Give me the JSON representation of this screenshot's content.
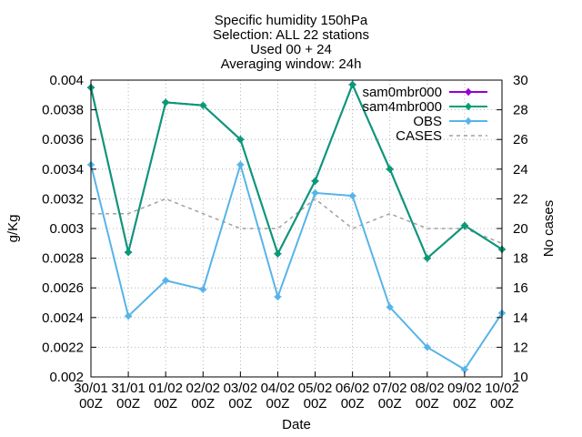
{
  "chart_data": {
    "type": "line",
    "title": [
      "Specific humidity 150hPa",
      "Selection: ALL      22 stations",
      "Used 00 + 24",
      "Averaging window: 24h"
    ],
    "xlabel": "Date",
    "ylabel": "g/Kg",
    "y2label": "No cases",
    "categories": [
      [
        "30/01",
        "00Z"
      ],
      [
        "31/01",
        "00Z"
      ],
      [
        "01/02",
        "00Z"
      ],
      [
        "02/02",
        "00Z"
      ],
      [
        "03/02",
        "00Z"
      ],
      [
        "04/02",
        "00Z"
      ],
      [
        "05/02",
        "00Z"
      ],
      [
        "06/02",
        "00Z"
      ],
      [
        "07/02",
        "00Z"
      ],
      [
        "08/02",
        "00Z"
      ],
      [
        "09/02",
        "00Z"
      ],
      [
        "10/02",
        "00Z"
      ]
    ],
    "ylim": [
      0.002,
      0.004
    ],
    "yticks": [
      "0.002",
      "0.0022",
      "0.0024",
      "0.0026",
      "0.0028",
      "0.003",
      "0.0032",
      "0.0034",
      "0.0036",
      "0.0038",
      "0.004"
    ],
    "y2lim": [
      10,
      30
    ],
    "y2ticks": [
      "10",
      "12",
      "14",
      "16",
      "18",
      "20",
      "22",
      "24",
      "26",
      "28",
      "30"
    ],
    "grid": true,
    "legend_position": "top-right",
    "series": [
      {
        "name": "sam0mbr000",
        "color": "#9400d3",
        "marker": "plus",
        "axis": "y1",
        "values": [
          0.00395,
          0.00284,
          0.00385,
          0.00383,
          0.0036,
          0.00283,
          0.00332,
          0.00397,
          0.0034,
          0.0028,
          0.00302,
          0.00286
        ]
      },
      {
        "name": "sam4mbr000",
        "color": "#009e73",
        "marker": "plus",
        "axis": "y1",
        "values": [
          0.00395,
          0.00284,
          0.00385,
          0.00383,
          0.0036,
          0.00283,
          0.00332,
          0.00397,
          0.0034,
          0.0028,
          0.00302,
          0.00286
        ]
      },
      {
        "name": "OBS",
        "color": "#56b4e9",
        "marker": "plus",
        "axis": "y1",
        "values": [
          0.00343,
          0.00241,
          0.00265,
          0.00259,
          0.00343,
          0.00254,
          0.00324,
          0.00322,
          0.00247,
          0.0022,
          0.00205,
          0.00243
        ]
      },
      {
        "name": "CASES",
        "color": "#a0a0a0",
        "dashed": true,
        "axis": "y2",
        "values": [
          21,
          21,
          22,
          21,
          20,
          20,
          22,
          20,
          21,
          20,
          20,
          19
        ]
      }
    ]
  }
}
